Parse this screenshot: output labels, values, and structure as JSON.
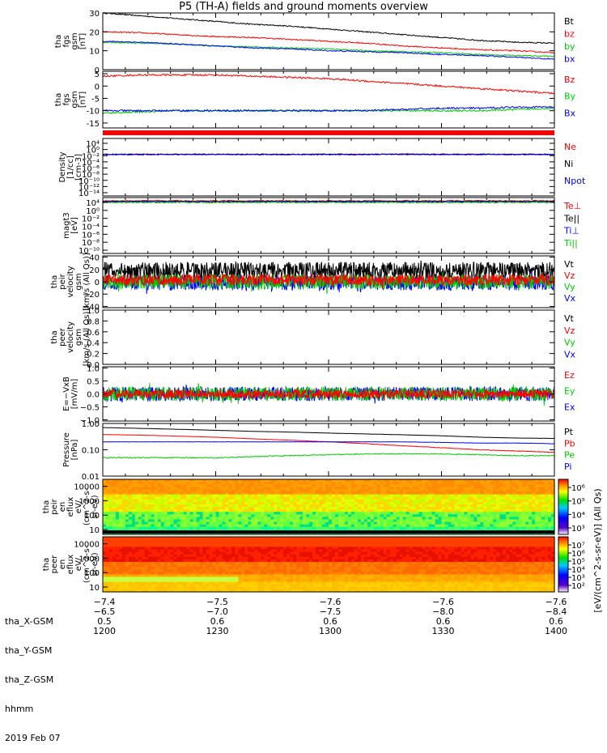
{
  "title": "P5 (TH-A) fields and ground moments overview",
  "colors": {
    "black": "#000000",
    "red": "#ff0000",
    "green": "#00cc00",
    "blue": "#0000ff",
    "bg": "#ffffff"
  },
  "chart_data": [
    {
      "type": "line",
      "panel": "fgs_gsm_mag",
      "ylabel": [
        "tha",
        "fgs",
        "gsm",
        "[nT]"
      ],
      "ylim": [
        0,
        30
      ],
      "yticks": [
        "30",
        "20",
        "10",
        "0"
      ],
      "ytick_values": [
        30,
        20,
        10,
        0
      ],
      "x": [
        0,
        10,
        20,
        30,
        40,
        50,
        60,
        70,
        80,
        90,
        100,
        110,
        120
      ],
      "series": [
        {
          "name": "Bt",
          "color": "#000000",
          "values": [
            30,
            28.5,
            27,
            25.5,
            24,
            23,
            21.5,
            20,
            18.5,
            17,
            15.5,
            14.5,
            14
          ]
        },
        {
          "name": "bz",
          "color": "#ff0000",
          "values": [
            20,
            19.5,
            18.5,
            17.5,
            17,
            16,
            15,
            14,
            12.5,
            11.5,
            10.5,
            10,
            9
          ]
        },
        {
          "name": "by",
          "color": "#00cc00",
          "values": [
            14.5,
            14,
            13.5,
            12.5,
            12,
            11.5,
            11,
            10,
            9.5,
            9,
            8,
            7.5,
            7
          ]
        },
        {
          "name": "bx",
          "color": "#0000ff",
          "values": [
            15,
            14.5,
            13.5,
            12.5,
            11.5,
            11,
            10,
            9.5,
            9,
            8,
            7.5,
            6.5,
            5.5
          ]
        }
      ]
    },
    {
      "type": "line",
      "panel": "fgs_gsm_comp",
      "ylabel": [
        "tha",
        "fgs",
        "gsm",
        "[nT]"
      ],
      "ylim": [
        -17,
        6
      ],
      "yticks": [
        "5",
        "0",
        "-5",
        "-10",
        "-15"
      ],
      "ytick_values": [
        5,
        0,
        -5,
        -10,
        -15
      ],
      "x": [
        0,
        10,
        20,
        30,
        40,
        50,
        60,
        70,
        80,
        90,
        100,
        110,
        120
      ],
      "series": [
        {
          "name": "Bz",
          "color": "#ff0000",
          "values": [
            4,
            4.5,
            4.5,
            4.5,
            4,
            3.5,
            3,
            2,
            1,
            0,
            -1,
            -2,
            -3
          ]
        },
        {
          "name": "By",
          "color": "#00cc00",
          "values": [
            -11,
            -10.5,
            -10,
            -10,
            -10,
            -10,
            -10,
            -10,
            -10,
            -10,
            -10,
            -9.5,
            -9
          ]
        },
        {
          "name": "Bx",
          "color": "#0000ff",
          "values": [
            -10,
            -10,
            -10,
            -10,
            -10,
            -10,
            -10,
            -10,
            -9.5,
            -9,
            -9,
            -8.5,
            -8.5
          ]
        }
      ]
    },
    {
      "type": "line",
      "panel": "density",
      "scale": "log",
      "ylabel": [
        "Density",
        "[1/cc]",
        "[cm-3]"
      ],
      "yticks": [
        "10⁴",
        "10⁰",
        "10⁻²",
        "10⁻⁴",
        "10⁻⁶",
        "10⁻⁸",
        "10⁻¹⁰",
        "10⁻¹²",
        "10⁻¹⁴"
      ],
      "series": [
        {
          "name": "Ne",
          "color": "#ff0000",
          "values": [
            0.9,
            0.9,
            0.9,
            0.9,
            0.9,
            0.9,
            0.9,
            0.9,
            0.9,
            0.9,
            0.9,
            0.9,
            0.9
          ]
        },
        {
          "name": "Ni",
          "color": "#000000",
          "values": [
            1,
            1,
            1,
            1,
            1,
            1,
            1,
            1,
            1,
            1,
            1,
            1,
            1
          ]
        },
        {
          "name": "Npot",
          "color": "#0000ff",
          "values": [
            0.8,
            0.8,
            0.8,
            0.8,
            0.8,
            0.8,
            0.8,
            0.8,
            1.2,
            0.8,
            0.8,
            0.8,
            0.8
          ]
        }
      ]
    },
    {
      "type": "line",
      "panel": "temperature",
      "scale": "log",
      "ylabel": [
        "magt3",
        "[eV]"
      ],
      "yticks": [
        "10⁴",
        "10⁰",
        "10⁻²",
        "10⁻⁴",
        "10⁻⁶",
        "10⁻⁸",
        "10⁻¹⁰"
      ],
      "series": [
        {
          "name": "Te⊥",
          "color": "#ff0000"
        },
        {
          "name": "Te||",
          "color": "#000000"
        },
        {
          "name": "Ti⊥",
          "color": "#0000ff"
        },
        {
          "name": "Ti||",
          "color": "#00cc00"
        }
      ]
    },
    {
      "type": "line",
      "panel": "peir_velocity",
      "ylabel": [
        "tha",
        "peir",
        "velocity",
        "gsm",
        "[km/s (All Qs)]"
      ],
      "ylim": [
        -42,
        42
      ],
      "yticks": [
        "40",
        "20",
        "0",
        "−20",
        "−40"
      ],
      "ytick_values": [
        40,
        20,
        0,
        -20,
        -40
      ],
      "series": [
        {
          "name": "Vt",
          "color": "#000000"
        },
        {
          "name": "Vz",
          "color": "#ff0000"
        },
        {
          "name": "Vy",
          "color": "#00cc00"
        },
        {
          "name": "Vx",
          "color": "#0000ff"
        }
      ]
    },
    {
      "type": "line",
      "panel": "peer_velocity",
      "ylabel": [
        "tha",
        "peer",
        "velocity",
        "gsm",
        "[km/s (All Qs)]"
      ],
      "ylim": [
        0,
        1
      ],
      "yticks": [
        "1.0",
        "0.8",
        "0.6",
        "0.4",
        "0.2",
        "0.0"
      ],
      "ytick_values": [
        1.0,
        0.8,
        0.6,
        0.4,
        0.2,
        0.0
      ],
      "series": [
        {
          "name": "Vt",
          "color": "#000000"
        },
        {
          "name": "Vz",
          "color": "#ff0000"
        },
        {
          "name": "Vy",
          "color": "#00cc00"
        },
        {
          "name": "Vx",
          "color": "#0000ff"
        }
      ]
    },
    {
      "type": "line",
      "panel": "efield",
      "ylabel": [
        "E=−VxB",
        "[mV/m]"
      ],
      "ylim": [
        -1.05,
        1.05
      ],
      "yticks": [
        "1.0",
        "0.5",
        "0.0",
        "−0.5",
        "−1.0"
      ],
      "ytick_values": [
        1.0,
        0.5,
        0.0,
        -0.5,
        -1.0
      ],
      "series": [
        {
          "name": "Ez",
          "color": "#ff0000"
        },
        {
          "name": "Ey",
          "color": "#00cc00"
        },
        {
          "name": "Ex",
          "color": "#0000ff"
        }
      ]
    },
    {
      "type": "line",
      "panel": "pressure",
      "scale": "log",
      "ylabel": [
        "Pressure",
        "[nPa]"
      ],
      "ylim": [
        0.01,
        1.0
      ],
      "yticks": [
        "1.00",
        "0.10",
        "0.01"
      ],
      "ytick_values": [
        1.0,
        0.1,
        0.01
      ],
      "x": [
        0,
        10,
        20,
        30,
        40,
        50,
        60,
        70,
        80,
        90,
        100,
        110,
        120
      ],
      "series": [
        {
          "name": "Pt",
          "color": "#000000",
          "values": [
            0.7,
            0.65,
            0.6,
            0.55,
            0.5,
            0.47,
            0.43,
            0.4,
            0.37,
            0.34,
            0.3,
            0.28,
            0.27
          ]
        },
        {
          "name": "Pb",
          "color": "#ff0000",
          "values": [
            0.38,
            0.36,
            0.33,
            0.3,
            0.26,
            0.23,
            0.2,
            0.17,
            0.14,
            0.12,
            0.1,
            0.09,
            0.08
          ]
        },
        {
          "name": "Pe",
          "color": "#00cc00",
          "values": [
            0.05,
            0.05,
            0.05,
            0.05,
            0.055,
            0.06,
            0.065,
            0.07,
            0.07,
            0.07,
            0.065,
            0.06,
            0.06
          ]
        },
        {
          "name": "Pi",
          "color": "#0000ff",
          "values": [
            0.2,
            0.2,
            0.2,
            0.2,
            0.2,
            0.2,
            0.2,
            0.2,
            0.2,
            0.19,
            0.18,
            0.18,
            0.17
          ]
        }
      ]
    },
    {
      "type": "heatmap",
      "panel": "peir_eflux",
      "ylabel": [
        "tha",
        "peir",
        "en",
        "eflux",
        "eV/",
        "(cm^2-s-",
        "sr-eV)"
      ],
      "yticks": [
        "10000",
        "1000",
        "100",
        "10"
      ]
    },
    {
      "type": "heatmap",
      "panel": "peer_eflux",
      "ylabel": [
        "tha",
        "peer",
        "en",
        "eflux",
        "eV/",
        "(cm^2-s-",
        "sr-eV)"
      ],
      "yticks": [
        "10000",
        "1000",
        "100",
        "10"
      ]
    }
  ],
  "colorbar": {
    "label": "[eV/(cm^2-s-sr-eV)] (All Qs)",
    "top_ticks": [
      "10⁶",
      "10⁵",
      "10⁴",
      "10³"
    ],
    "bottom_ticks": [
      "10⁷",
      "10⁶",
      "10⁵",
      "10⁴",
      "10³",
      "10²"
    ]
  },
  "footer": {
    "row_labels": [
      "tha_X-GSM",
      "tha_Y-GSM",
      "tha_Z-GSM",
      "hhmm",
      "2019 Feb 07"
    ],
    "columns": [
      [
        "−7.4",
        "−6.5",
        "0.5",
        "1200"
      ],
      [
        "−7.5",
        "−7.0",
        "0.6",
        "1230"
      ],
      [
        "−7.6",
        "−7.5",
        "0.6",
        "1300"
      ],
      [
        "−7.6",
        "−8.0",
        "0.6",
        "1330"
      ],
      [
        "−7.6",
        "−8.4",
        "0.6",
        "1400"
      ]
    ]
  }
}
